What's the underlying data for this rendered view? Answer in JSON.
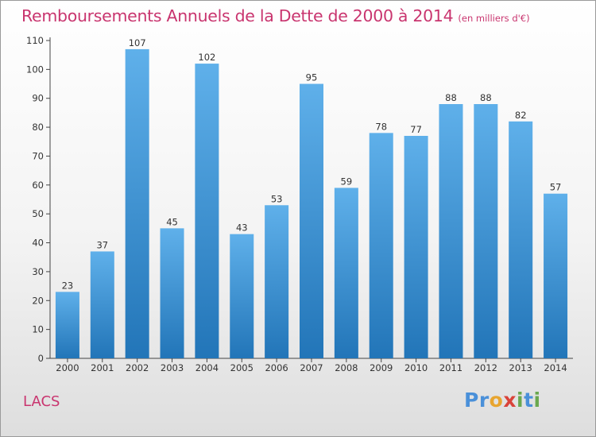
{
  "title": "Remboursements Annuels de la Dette de 2000 à 2014",
  "unit": "(en milliers d'€)",
  "commune": "LACS",
  "logo": {
    "letters": [
      "P",
      "r",
      "o",
      "x",
      "i",
      "t",
      "i"
    ],
    "colors": [
      "#4a90d9",
      "#4a90d9",
      "#e8a530",
      "#d9433a",
      "#6aa84f",
      "#4a90d9",
      "#6aa84f"
    ]
  },
  "colors": {
    "bar_top": "#5fb0ea",
    "bar_bottom": "#2275b8",
    "title": "#c9356f"
  },
  "chart_data": {
    "type": "bar",
    "title": "Remboursements Annuels de la Dette de 2000 à 2014",
    "xlabel": "",
    "ylabel": "",
    "categories": [
      "2000",
      "2001",
      "2002",
      "2003",
      "2004",
      "2005",
      "2006",
      "2007",
      "2008",
      "2009",
      "2010",
      "2011",
      "2012",
      "2013",
      "2014"
    ],
    "values": [
      23,
      37,
      107,
      45,
      102,
      43,
      53,
      95,
      59,
      78,
      77,
      88,
      88,
      82,
      57
    ],
    "ylim": [
      0,
      110
    ],
    "yticks": [
      0,
      10,
      20,
      30,
      40,
      50,
      60,
      70,
      80,
      90,
      100,
      110
    ],
    "grid": false,
    "legend": "none"
  }
}
